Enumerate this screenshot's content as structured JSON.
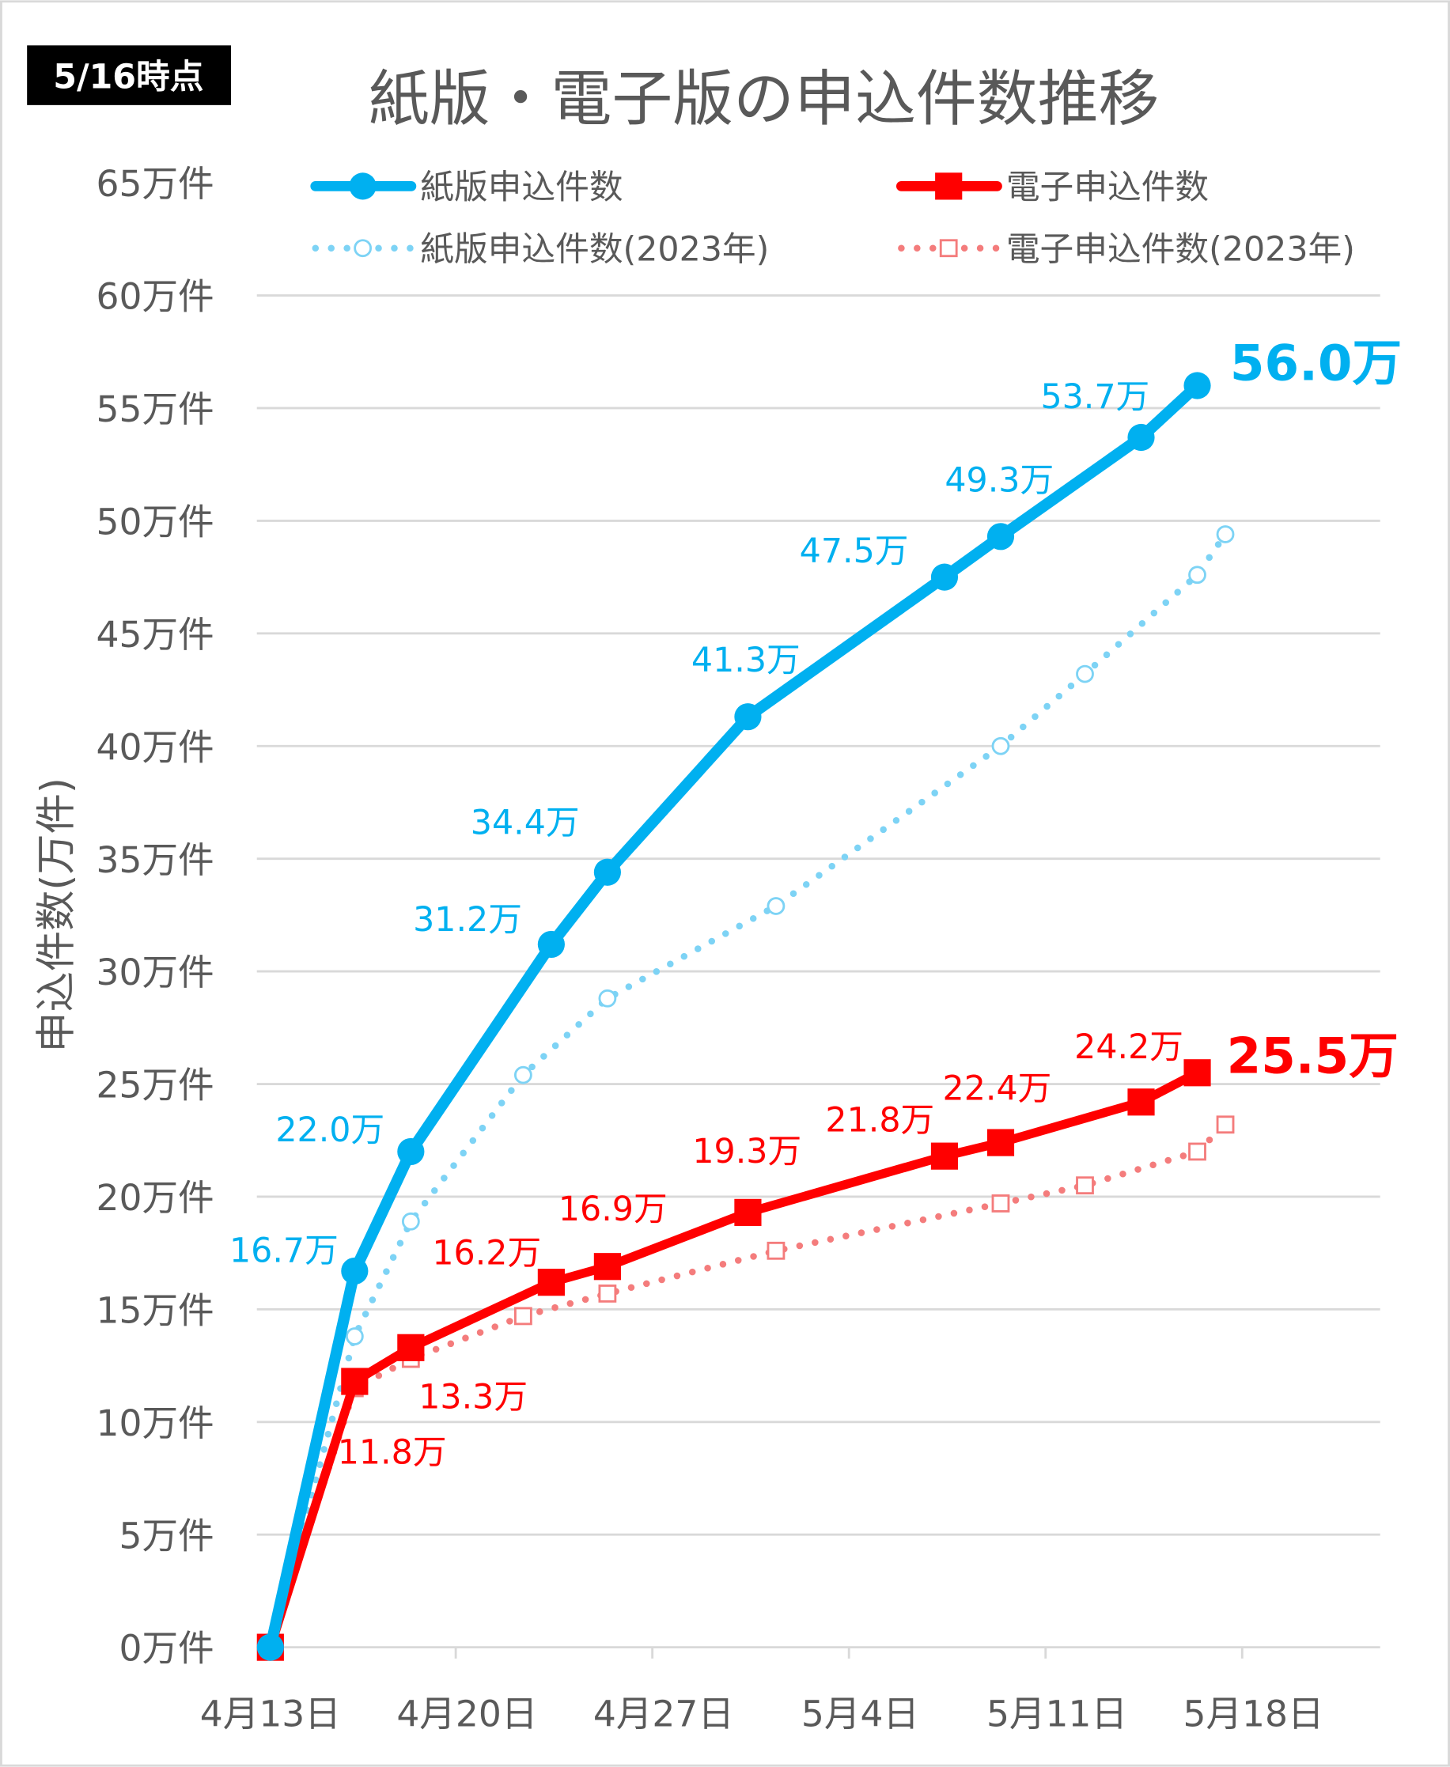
{
  "badge": "5/16時点",
  "chart_data": {
    "type": "line",
    "title": "紙版・電子版の申込件数推移",
    "ylabel": "申込件数(万件)",
    "xlabel": "",
    "ylim": [
      0,
      65
    ],
    "yticks": [
      "0万件",
      "5万件",
      "10万件",
      "15万件",
      "20万件",
      "25万件",
      "30万件",
      "35万件",
      "40万件",
      "45万件",
      "50万件",
      "55万件",
      "60万件",
      "65万件"
    ],
    "xlim": [
      "4/13",
      "5/18"
    ],
    "xticks": [
      "4月13日",
      "4月20日",
      "4月27日",
      "5月4日",
      "5月11日",
      "5月18日"
    ],
    "grid": true,
    "legend_placement": "top",
    "series": [
      {
        "name": "紙版申込件数",
        "color": "#00B0F0",
        "style": "solid",
        "marker": "circle",
        "x": [
          "4/13",
          "4/16",
          "4/18",
          "4/23",
          "4/25",
          "4/30",
          "5/7",
          "5/9",
          "5/14",
          "5/16"
        ],
        "values": [
          0,
          16.7,
          22.0,
          31.2,
          34.4,
          41.3,
          47.5,
          49.3,
          53.7,
          56.0
        ],
        "labels": [
          "",
          "16.7万",
          "22.0万",
          "31.2万",
          "34.4万",
          "41.3万",
          "47.5万",
          "49.3万",
          "53.7万",
          "56.0万"
        ]
      },
      {
        "name": "電子申込件数",
        "color": "#FF0000",
        "style": "solid",
        "marker": "square",
        "x": [
          "4/13",
          "4/16",
          "4/18",
          "4/23",
          "4/25",
          "4/30",
          "5/7",
          "5/9",
          "5/14",
          "5/16"
        ],
        "values": [
          0,
          11.8,
          13.3,
          16.2,
          16.9,
          19.3,
          21.8,
          22.4,
          24.2,
          25.5
        ],
        "labels": [
          "",
          "11.8万",
          "13.3万",
          "16.2万",
          "16.9万",
          "19.3万",
          "21.8万",
          "22.4万",
          "24.2万",
          "25.5万"
        ]
      },
      {
        "name": "紙版申込件数(2023年)",
        "color": "#7DD3F5",
        "style": "dotted",
        "marker": "open-circle",
        "x": [
          "4/13",
          "4/16",
          "4/18",
          "4/22",
          "4/25",
          "5/1",
          "5/9",
          "5/12",
          "5/16",
          "5/17"
        ],
        "values": [
          0,
          13.8,
          18.9,
          25.4,
          28.8,
          32.9,
          40.0,
          43.2,
          47.6,
          49.4
        ]
      },
      {
        "name": "電子申込件数(2023年)",
        "color": "#F47C7C",
        "style": "dotted",
        "marker": "open-square",
        "x": [
          "4/13",
          "4/16",
          "4/18",
          "4/22",
          "4/25",
          "5/1",
          "5/9",
          "5/12",
          "5/16",
          "5/17"
        ],
        "values": [
          0,
          11.5,
          12.8,
          14.7,
          15.7,
          17.6,
          19.7,
          20.5,
          22.0,
          23.2
        ]
      }
    ]
  }
}
